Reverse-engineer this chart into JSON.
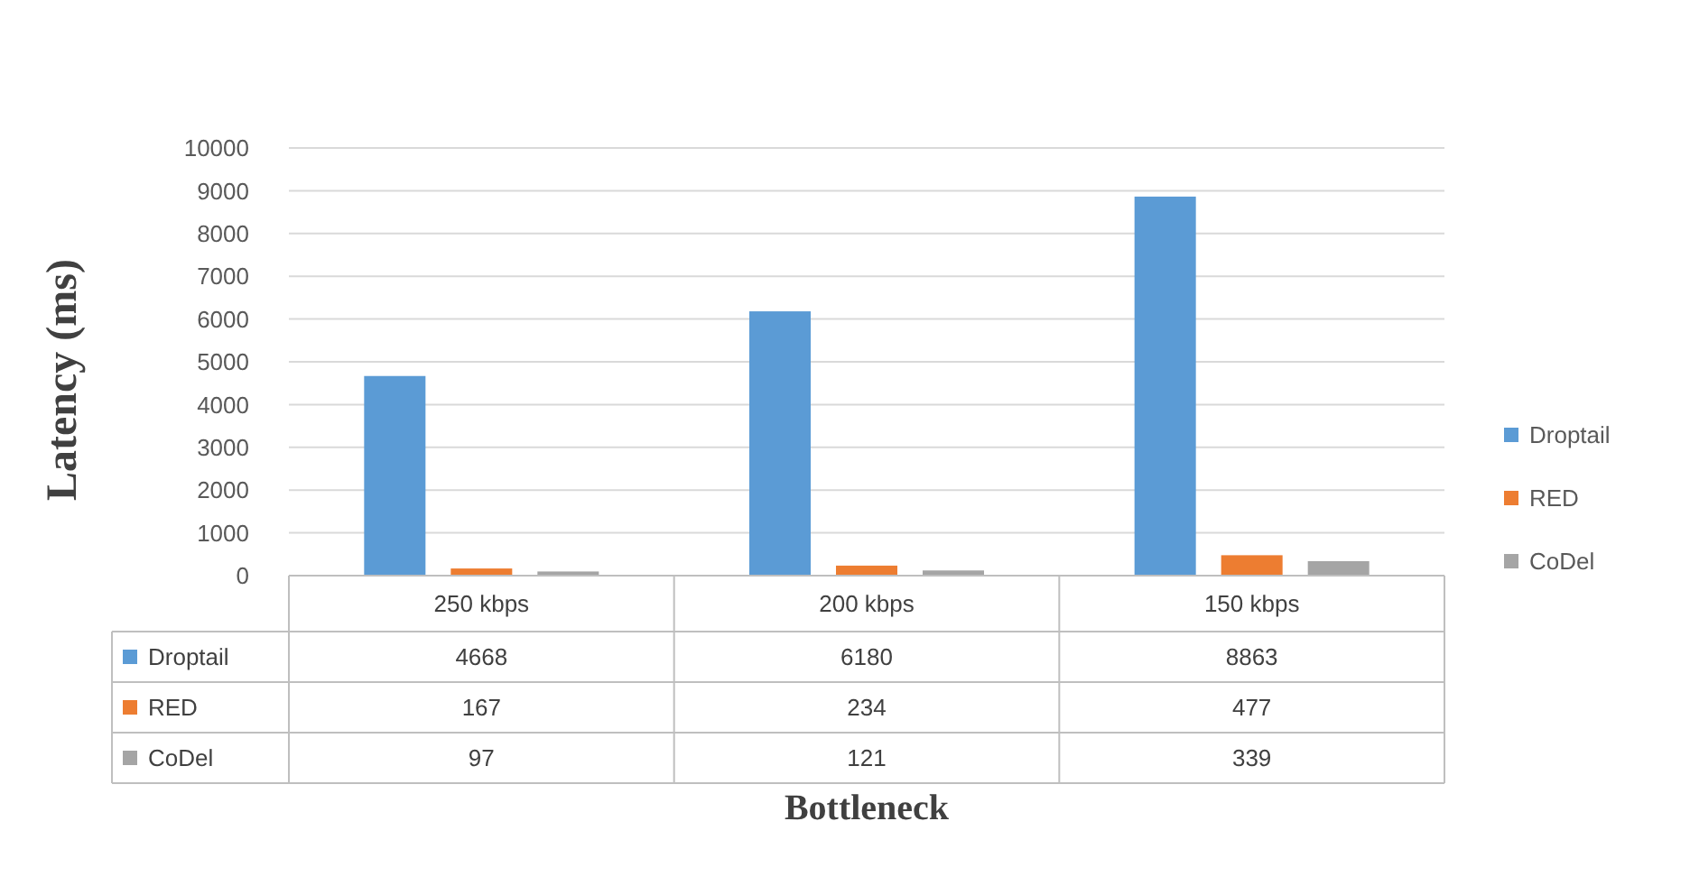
{
  "chart_data": {
    "type": "bar",
    "xlabel": "Bottleneck",
    "ylabel": "Latency (ms)",
    "categories": [
      "250 kbps",
      "200 kbps",
      "150 kbps"
    ],
    "series": [
      {
        "name": "Droptail",
        "color": "#5b9bd5",
        "values": [
          4668,
          6180,
          8863
        ]
      },
      {
        "name": "RED",
        "color": "#ed7d31",
        "values": [
          167,
          234,
          477
        ]
      },
      {
        "name": "CoDel",
        "color": "#a5a5a5",
        "values": [
          97,
          121,
          339
        ]
      }
    ],
    "ylim": [
      0,
      10000
    ],
    "yticks": [
      0,
      1000,
      2000,
      3000,
      4000,
      5000,
      6000,
      7000,
      8000,
      9000,
      10000
    ],
    "grid": "y",
    "legend": "right",
    "data_labels": true
  }
}
